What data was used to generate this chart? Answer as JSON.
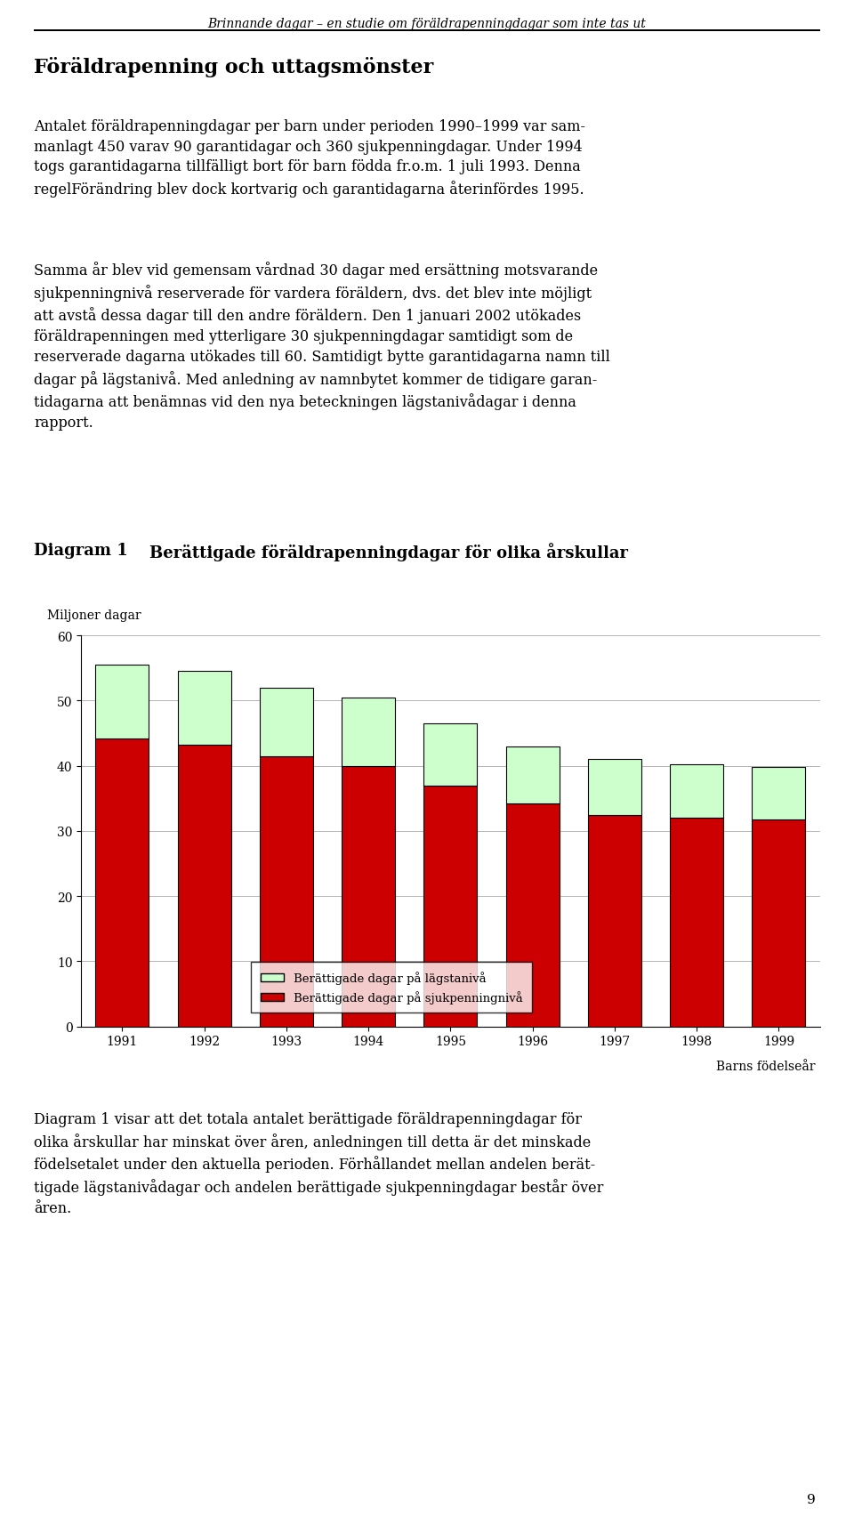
{
  "years": [
    "1991",
    "1992",
    "1993",
    "1994",
    "1995",
    "1996",
    "1997",
    "1998",
    "1999"
  ],
  "red_values": [
    44.2,
    43.2,
    41.5,
    40.0,
    37.0,
    34.2,
    32.5,
    32.0,
    31.8
  ],
  "total_values": [
    55.5,
    54.5,
    52.0,
    50.5,
    46.5,
    43.0,
    41.0,
    40.2,
    39.8
  ],
  "red_color": "#cc0000",
  "green_color": "#ccffcc",
  "bar_edge_color": "#000000",
  "ylim": [
    0,
    60
  ],
  "yticks": [
    0,
    10,
    20,
    30,
    40,
    50,
    60
  ],
  "xlabel": "Barns födelseår",
  "diagram_label": "Diagram 1",
  "diagram_title": "Berättigade föräldrapenningdagar för olika årskullar",
  "ylabel_above": "Miljoner dagar",
  "legend_green": "Berättigade dagar på lägstanivå",
  "legend_red": "Berättigade dagar på sjukpenningnivå",
  "header_italic": "Brinnande dagar – en studie om föräldrapenningdagar som inte tas ut",
  "section_title": "Föräldrapenning och uttagsmönster",
  "body_text_1": "Antalet föräldrapenningdagar per barn under perioden 1990–1999 var sam-\nmanlagt 450 varav 90 garantidagar och 360 sjukpenningdagar. Under 1994\ntogs garantidagarna tillfälligt bort för barn födda fr.o.m. 1 juli 1993. Denna\nregelFörändring blev dock kortvarig och garantidagarna återinfördes 1995.",
  "body_text_1b": "Antalet föräldrapenningdagar per barn under perioden 1990–1999 var sam-\nmanlagt 450 varav 90 garantidagar och 360 sjukpenningdagar. Under 1994\ntogs garantidagarna tillfälligt bort för barn födda fr.o.m. 1 juli 1993. Denna\nregelFörändring blev dock kortvarig och garantidagarna återinfördes 1995.",
  "body_text_2": "Samma år blev vid gemensam vårdnad 30 dagar med ersättning motsvarande\nsjukpenningnivå reserverade för vardera föräldern, dvs. det blev inte möjligt\natt avstå dessa dagar till den andre föräldern. Den 1 januari 2002 utökades\nföräldrapenningen med ytterligare 30 sjukpenningdagar samtidigt som de\nreserverade dagarna utökades till 60. Samtidigt bytte garantidagarna namn till\ndagar på lägstanivå. Med anledning av namnbytet kommer de tidigare garan-\ntidagarna att benämnas vid den nya beteckningen lägstanivådagar i denna\nrapport.",
  "body_text_3": "Diagram 1 visar att det totala antalet berättigade föräldrapenningdagar för\nolika årskullar har minskat över åren, anledningen till detta är det minskade\nfödelsetalet under den aktuella perioden. Förhållandet mellan andelen berät-\ntigade lägstanivådagar och andelen berättigade sjukpenningdagar består över\nåren.",
  "page_number": "9",
  "background_color": "#ffffff",
  "text_color": "#000000"
}
